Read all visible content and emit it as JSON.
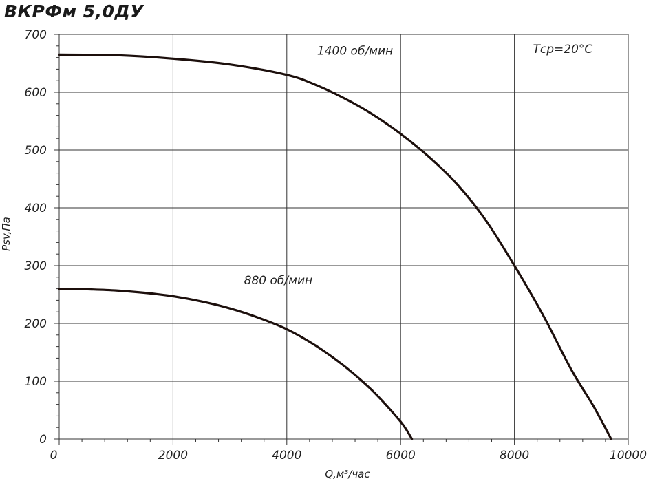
{
  "chart_data": {
    "type": "line",
    "title": "ВКРФм 5,0ДУ",
    "xlabel": "Q,м³/час",
    "ylabel": "Psv,Па",
    "xlim": [
      0,
      10000
    ],
    "ylim": [
      0,
      700
    ],
    "x_ticks": [
      0,
      2000,
      4000,
      6000,
      8000,
      10000
    ],
    "y_ticks": [
      0,
      100,
      200,
      300,
      400,
      500,
      600,
      700
    ],
    "grid": true,
    "legend": "none",
    "annotations": [
      {
        "text": "1400 об/мин",
        "x": 5200,
        "y": 665
      },
      {
        "text": "880 об/мин",
        "x": 3850,
        "y": 268
      },
      {
        "text": "Tср=20°С",
        "x": 8850,
        "y": 668
      }
    ],
    "series": [
      {
        "x": [
          0,
          1000,
          2000,
          3000,
          4000,
          4500,
          5000,
          5500,
          6000,
          6500,
          7000,
          7500,
          8000,
          8500,
          9000,
          9400,
          9700
        ],
        "values": [
          665,
          664,
          658,
          648,
          630,
          613,
          590,
          562,
          528,
          488,
          440,
          378,
          300,
          215,
          120,
          55,
          0
        ]
      },
      {
        "x": [
          0,
          500,
          1000,
          1500,
          2000,
          2500,
          3000,
          3500,
          4000,
          4500,
          5000,
          5500,
          6000,
          6200
        ],
        "values": [
          260,
          259,
          257,
          253,
          247,
          238,
          226,
          210,
          190,
          162,
          127,
          84,
          30,
          0
        ]
      }
    ]
  }
}
